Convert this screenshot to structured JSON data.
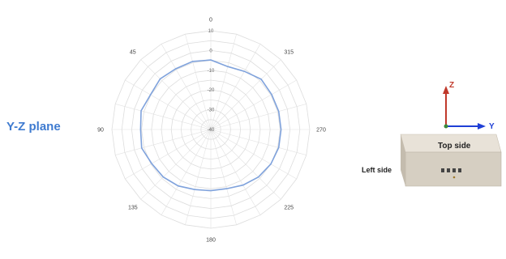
{
  "plane_label": "Y-Z plane",
  "chart_data": {
    "type": "polar-line",
    "angles_deg": [
      0,
      15,
      30,
      45,
      60,
      75,
      90,
      105,
      120,
      135,
      150,
      165,
      180,
      195,
      210,
      225,
      240,
      255,
      270,
      285,
      300,
      315,
      330,
      345
    ],
    "values_db": [
      -4.8,
      -4.3,
      -4.5,
      -3.8,
      -4.8,
      -3.5,
      -4.5,
      -3.8,
      -5.5,
      -6.0,
      -7.0,
      -8.5,
      -9.0,
      -9.0,
      -7.5,
      -6.0,
      -5.0,
      -4.5,
      -4.5,
      -4.5,
      -4.5,
      -4.0,
      -6.0,
      -7.0
    ],
    "radial_ticks": [
      10,
      0,
      -10,
      -20,
      -30,
      -40
    ],
    "radial_range": [
      -40,
      10
    ],
    "angle_labels": [
      "0",
      "45",
      "90",
      "135",
      "180",
      "225",
      "270",
      "315"
    ],
    "series_color": "#7fa2dc",
    "grid": true
  },
  "device": {
    "axis_z": "Z",
    "axis_y": "Y",
    "top_label": "Top side",
    "left_label": "Left side",
    "axis_z_color": "#c0392b",
    "axis_y_color": "#1f3fd6"
  }
}
